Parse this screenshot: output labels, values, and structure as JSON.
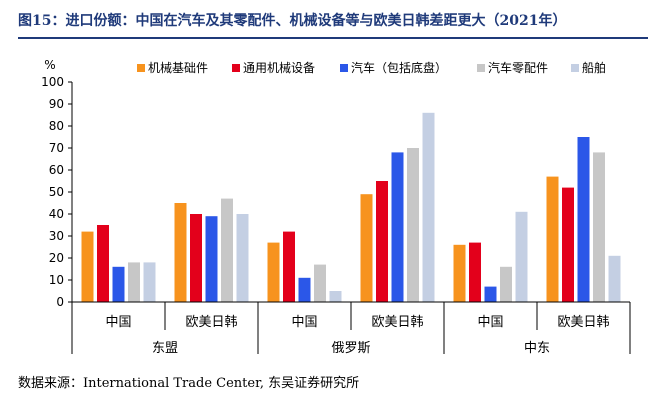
{
  "header": {
    "title": "图15：进口份额：中国在汽车及其零配件、机械设备等与欧美日韩差距更大（2021年）"
  },
  "footer": {
    "source": "数据来源：International Trade Center, 东吴证券研究所"
  },
  "colors": {
    "机械基础件": "#f7931e",
    "通用机械设备": "#e3001b",
    "汽车（包括底盘）": "#2b57e8",
    "汽车零配件": "#c7c7c7",
    "船舶": "#c4cfe3",
    "title": "#1f3a7a"
  },
  "chart_data": {
    "type": "bar",
    "title": "",
    "ylabel": "%",
    "ylim": [
      0,
      100
    ],
    "yticks": [
      0,
      10,
      20,
      30,
      40,
      50,
      60,
      70,
      80,
      90,
      100
    ],
    "legend_position": "top-right",
    "grid": false,
    "groups": [
      "东盟",
      "俄罗斯",
      "中东"
    ],
    "categories": [
      "中国",
      "欧美日韩",
      "中国",
      "欧美日韩",
      "中国",
      "欧美日韩"
    ],
    "series": [
      {
        "name": "机械基础件",
        "values": [
          32,
          45,
          27,
          49,
          26,
          57
        ]
      },
      {
        "name": "通用机械设备",
        "values": [
          35,
          40,
          32,
          55,
          27,
          52
        ]
      },
      {
        "name": "汽车（包括底盘）",
        "values": [
          16,
          39,
          11,
          68,
          7,
          75
        ]
      },
      {
        "name": "汽车零配件",
        "values": [
          18,
          47,
          17,
          70,
          16,
          68
        ]
      },
      {
        "name": "船舶",
        "values": [
          18,
          40,
          5,
          86,
          41,
          21
        ]
      }
    ]
  }
}
